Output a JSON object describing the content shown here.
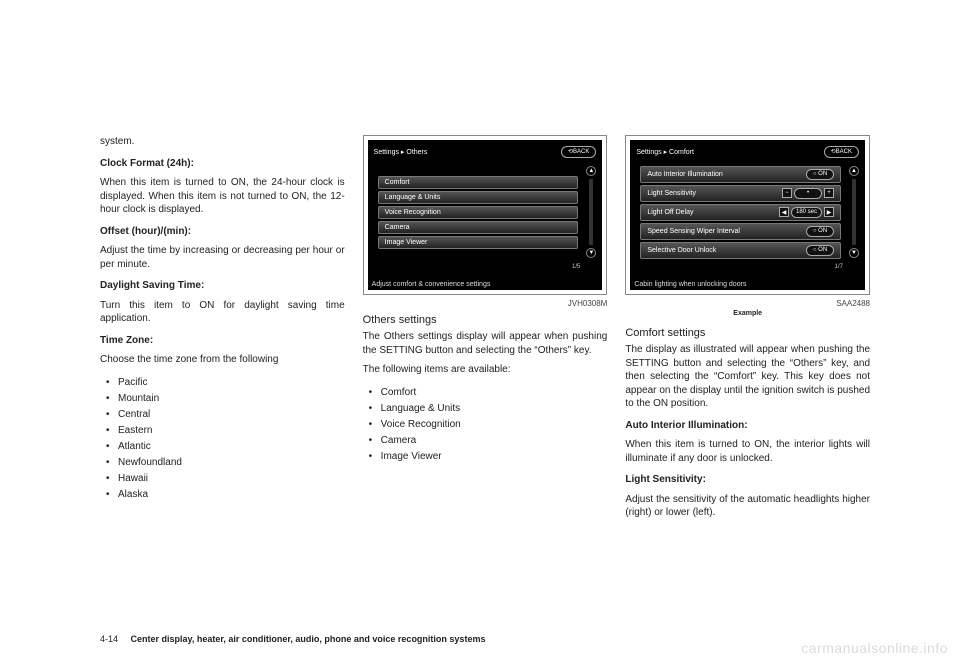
{
  "col1": {
    "lead": "system.",
    "h1": "Clock Format (24h):",
    "p1": "When this item is turned to ON, the 24-hour clock is displayed. When this item is not turned to ON, the 12-hour clock is displayed.",
    "h2": "Offset (hour)/(min):",
    "p2": "Adjust the time by increasing or decreasing per hour or per minute.",
    "h3": "Daylight Saving Time:",
    "p3": "Turn this item to ON for daylight saving time application.",
    "h4": "Time Zone:",
    "p4": "Choose the time zone from the following",
    "zones": [
      "Pacific",
      "Mountain",
      "Central",
      "Eastern",
      "Atlantic",
      "Newfoundland",
      "Hawaii",
      "Alaska"
    ]
  },
  "fig1": {
    "breadcrumb": "Settings ▸ Others",
    "back": "⟲BACK",
    "items": [
      "Comfort",
      "Language & Units",
      "Voice Recognition",
      "Camera",
      "Image Viewer"
    ],
    "pager": "1/5",
    "hint": "Adjust comfort & convenience settings",
    "id": "JVH0308M"
  },
  "col2": {
    "subhead": "Others settings",
    "p1": "The Others settings display will appear when pushing the SETTING button and selecting the “Others” key.",
    "p2": "The following items are available:",
    "items": [
      "Comfort",
      "Language & Units",
      "Voice Recognition",
      "Camera",
      "Image Viewer"
    ]
  },
  "fig2": {
    "breadcrumb": "Settings ▸ Comfort",
    "back": "⟲BACK",
    "rows": [
      {
        "label": "Auto Interior Illumination",
        "ctrl": {
          "type": "pill",
          "value": "○ ON"
        }
      },
      {
        "label": "Light Sensitivity",
        "ctrl": {
          "type": "slider",
          "left": "−",
          "mid": "•",
          "right": "+"
        }
      },
      {
        "label": "Light Off Delay",
        "ctrl": {
          "type": "spin",
          "left": "◀",
          "value": "180 sec",
          "right": "▶"
        }
      },
      {
        "label": "Speed Sensing Wiper Interval",
        "ctrl": {
          "type": "pill",
          "value": "○ ON"
        }
      },
      {
        "label": "Selective Door Unlock",
        "ctrl": {
          "type": "pill",
          "value": "○ ON"
        }
      }
    ],
    "pager": "1/7",
    "hint": "Cabin lighting when unlocking doors",
    "id": "SAA2488",
    "caption": "Example"
  },
  "col3": {
    "subhead": "Comfort settings",
    "p1": "The display as illustrated will appear when pushing the SETTING button and selecting the “Others” key, and then selecting the “Comfort” key. This key does not appear on the display until the ignition switch is pushed to the ON position.",
    "h1": "Auto Interior Illumination:",
    "p2": "When this item is turned to ON, the interior lights will illuminate if any door is unlocked.",
    "h2": "Light Sensitivity:",
    "p3": "Adjust the sensitivity of the automatic headlights higher (right) or lower (left)."
  },
  "footer": {
    "page": "4-14",
    "section": "Center display, heater, air conditioner, audio, phone and voice recognition systems"
  },
  "watermark": "carmanualsonline.info"
}
